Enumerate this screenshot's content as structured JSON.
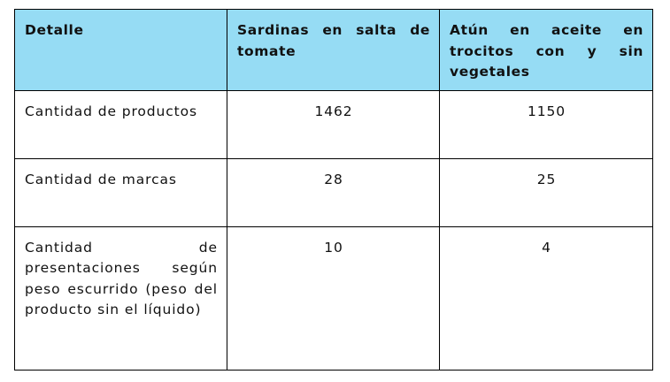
{
  "table": {
    "header": [
      "Detalle",
      "Sardinas en salta de tomate",
      "Atún en aceite en trocitos con y sin vegetales"
    ],
    "rows": [
      [
        "Cantidad de productos",
        "1462",
        "1150"
      ],
      [
        "Cantidad de marcas",
        "28",
        "25"
      ],
      [
        "Cantidad de presentaciones según peso escurrido (peso del producto sin el líquido)",
        "10",
        "4"
      ]
    ],
    "header_color": "#96dcf4"
  }
}
